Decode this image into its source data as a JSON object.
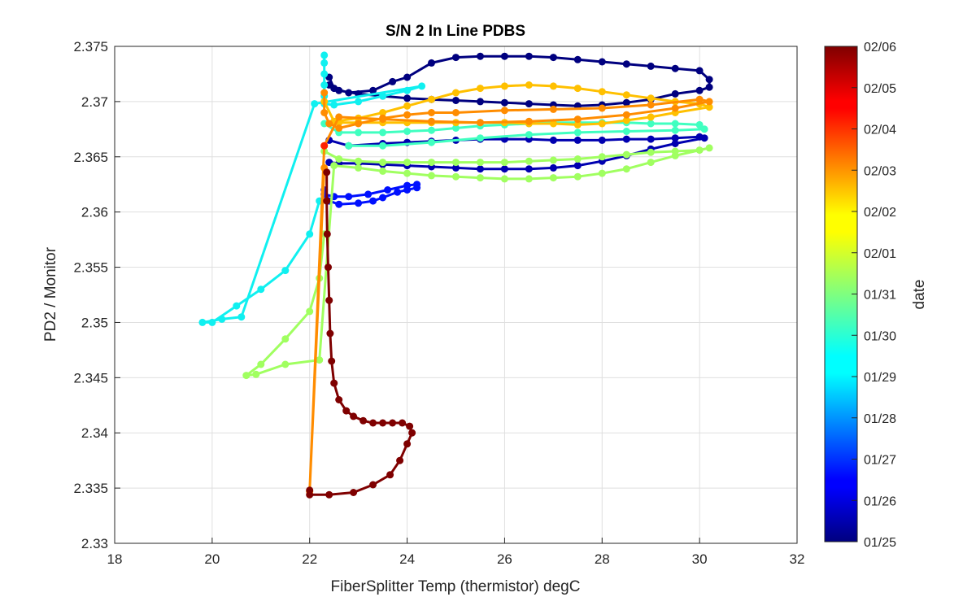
{
  "chart_data": {
    "type": "scatter",
    "title": "S/N 2 In Line PDBS",
    "xlabel": "FiberSplitter Temp (thermistor) degC",
    "ylabel": "PD2 / Monitor",
    "xlim": [
      18,
      32
    ],
    "ylim": [
      2.33,
      2.375
    ],
    "xticks": [
      "18",
      "20",
      "22",
      "24",
      "26",
      "28",
      "30",
      "32"
    ],
    "yticks": [
      "2.33",
      "2.335",
      "2.34",
      "2.345",
      "2.35",
      "2.355",
      "2.36",
      "2.365",
      "2.37",
      "2.375"
    ],
    "grid": true,
    "colorbar": {
      "label": "date",
      "colormap": "jet",
      "ticks": [
        "01/25",
        "01/26",
        "01/27",
        "01/28",
        "01/29",
        "01/30",
        "01/31",
        "02/01",
        "02/02",
        "02/03",
        "02/04",
        "02/05",
        "02/06"
      ]
    },
    "series": [
      {
        "date": "01/25",
        "color": "#00007f",
        "points": [
          [
            22.4,
            2.3722
          ],
          [
            22.5,
            2.3712
          ],
          [
            22.8,
            2.3708
          ],
          [
            23.3,
            2.371
          ],
          [
            23.7,
            2.3718
          ],
          [
            24.0,
            2.3722
          ],
          [
            24.5,
            2.3735
          ],
          [
            25.0,
            2.374
          ],
          [
            25.5,
            2.3741
          ],
          [
            26.0,
            2.3741
          ],
          [
            26.5,
            2.3741
          ],
          [
            27.0,
            2.374
          ],
          [
            27.5,
            2.3738
          ],
          [
            28.0,
            2.3736
          ],
          [
            28.5,
            2.3734
          ],
          [
            29.0,
            2.3732
          ],
          [
            29.5,
            2.373
          ],
          [
            30.0,
            2.3728
          ],
          [
            30.2,
            2.372
          ],
          [
            30.2,
            2.3713
          ],
          [
            30.0,
            2.371
          ],
          [
            29.5,
            2.3707
          ],
          [
            29.0,
            2.3702
          ],
          [
            28.5,
            2.3699
          ],
          [
            28.0,
            2.3697
          ],
          [
            27.5,
            2.3696
          ],
          [
            27.0,
            2.3697
          ],
          [
            26.5,
            2.3698
          ],
          [
            26.0,
            2.3699
          ],
          [
            25.5,
            2.37
          ],
          [
            25.0,
            2.3701
          ],
          [
            24.5,
            2.3702
          ],
          [
            24.0,
            2.3703
          ],
          [
            23.5,
            2.3705
          ],
          [
            23.0,
            2.3707
          ],
          [
            22.6,
            2.371
          ],
          [
            22.4,
            2.3715
          ]
        ]
      },
      {
        "date": "01/26",
        "color": "#0000b0",
        "points": [
          [
            22.4,
            2.3665
          ],
          [
            22.8,
            2.366
          ],
          [
            23.5,
            2.3662
          ],
          [
            24.0,
            2.3663
          ],
          [
            24.5,
            2.3664
          ],
          [
            25.0,
            2.3665
          ],
          [
            25.5,
            2.3666
          ],
          [
            26.0,
            2.3666
          ],
          [
            26.5,
            2.3666
          ],
          [
            27.0,
            2.3665
          ],
          [
            27.5,
            2.3665
          ],
          [
            28.0,
            2.3665
          ],
          [
            28.5,
            2.3666
          ],
          [
            29.0,
            2.3666
          ],
          [
            29.5,
            2.3667
          ],
          [
            30.0,
            2.3668
          ],
          [
            30.1,
            2.3667
          ],
          [
            29.5,
            2.3662
          ],
          [
            29.0,
            2.3657
          ],
          [
            28.5,
            2.3651
          ],
          [
            28.0,
            2.3646
          ],
          [
            27.5,
            2.3642
          ],
          [
            27.0,
            2.364
          ],
          [
            26.5,
            2.3639
          ],
          [
            26.0,
            2.3639
          ],
          [
            25.5,
            2.3639
          ],
          [
            25.0,
            2.364
          ],
          [
            24.5,
            2.3641
          ],
          [
            24.0,
            2.3642
          ],
          [
            23.5,
            2.3643
          ],
          [
            23.0,
            2.3644
          ],
          [
            22.6,
            2.3644
          ],
          [
            22.4,
            2.3645
          ]
        ]
      },
      {
        "date": "01/27",
        "color": "#0010ff",
        "points": [
          [
            22.3,
            2.362
          ],
          [
            22.4,
            2.361
          ],
          [
            22.6,
            2.3607
          ],
          [
            23.0,
            2.3608
          ],
          [
            23.3,
            2.361
          ],
          [
            23.5,
            2.3613
          ],
          [
            23.8,
            2.3618
          ],
          [
            24.0,
            2.362
          ],
          [
            24.2,
            2.3622
          ],
          [
            24.2,
            2.3625
          ],
          [
            24.0,
            2.3624
          ],
          [
            23.6,
            2.362
          ],
          [
            23.2,
            2.3616
          ],
          [
            22.8,
            2.3614
          ],
          [
            22.5,
            2.3614
          ],
          [
            22.3,
            2.3616
          ]
        ]
      },
      {
        "date": "01/29",
        "color": "#10f0f0",
        "points": [
          [
            22.3,
            2.3742
          ],
          [
            22.3,
            2.3735
          ],
          [
            22.3,
            2.3725
          ],
          [
            22.3,
            2.3715
          ],
          [
            22.3,
            2.3705
          ],
          [
            22.3,
            2.3698
          ],
          [
            22.5,
            2.3697
          ],
          [
            23.0,
            2.37
          ],
          [
            23.5,
            2.3705
          ],
          [
            24.0,
            2.371
          ],
          [
            24.3,
            2.3714
          ],
          [
            22.1,
            2.3698
          ],
          [
            20.6,
            2.3505
          ],
          [
            20.2,
            2.3503
          ],
          [
            19.8,
            2.35
          ],
          [
            20.0,
            2.35
          ],
          [
            20.5,
            2.3515
          ],
          [
            21.0,
            2.353
          ],
          [
            21.5,
            2.3547
          ],
          [
            22.0,
            2.358
          ],
          [
            22.2,
            2.361
          ]
        ]
      },
      {
        "date": "01/30",
        "color": "#40ffc0",
        "points": [
          [
            22.3,
            2.368
          ],
          [
            22.6,
            2.3672
          ],
          [
            23.0,
            2.3672
          ],
          [
            23.5,
            2.3672
          ],
          [
            24.0,
            2.3673
          ],
          [
            24.5,
            2.3674
          ],
          [
            25.0,
            2.3676
          ],
          [
            25.5,
            2.3678
          ],
          [
            26.0,
            2.3679
          ],
          [
            26.5,
            2.368
          ],
          [
            27.0,
            2.3681
          ],
          [
            27.5,
            2.3681
          ],
          [
            28.0,
            2.3681
          ],
          [
            28.5,
            2.3681
          ],
          [
            29.0,
            2.368
          ],
          [
            29.5,
            2.368
          ],
          [
            30.0,
            2.3679
          ],
          [
            30.1,
            2.3675
          ],
          [
            29.5,
            2.3674
          ],
          [
            28.5,
            2.3673
          ],
          [
            27.5,
            2.3672
          ],
          [
            26.5,
            2.367
          ],
          [
            25.5,
            2.3667
          ],
          [
            24.5,
            2.3663
          ],
          [
            23.5,
            2.366
          ],
          [
            22.8,
            2.366
          ]
        ]
      },
      {
        "date": "01/31",
        "color": "#a0ff60",
        "points": [
          [
            22.3,
            2.3655
          ],
          [
            22.6,
            2.3648
          ],
          [
            23.0,
            2.3646
          ],
          [
            23.5,
            2.3645
          ],
          [
            24.0,
            2.3645
          ],
          [
            24.5,
            2.3645
          ],
          [
            25.0,
            2.3645
          ],
          [
            25.5,
            2.3645
          ],
          [
            26.0,
            2.3645
          ],
          [
            26.5,
            2.3646
          ],
          [
            27.0,
            2.3647
          ],
          [
            27.5,
            2.3648
          ],
          [
            28.0,
            2.365
          ],
          [
            28.5,
            2.3652
          ],
          [
            29.0,
            2.3654
          ],
          [
            29.5,
            2.3655
          ],
          [
            30.0,
            2.3656
          ],
          [
            30.2,
            2.3658
          ],
          [
            29.5,
            2.3651
          ],
          [
            29.0,
            2.3645
          ],
          [
            28.5,
            2.3639
          ],
          [
            28.0,
            2.3635
          ],
          [
            27.5,
            2.3632
          ],
          [
            27.0,
            2.3631
          ],
          [
            26.5,
            2.363
          ],
          [
            26.0,
            2.363
          ],
          [
            25.5,
            2.3631
          ],
          [
            25.0,
            2.3632
          ],
          [
            24.5,
            2.3633
          ],
          [
            24.0,
            2.3635
          ],
          [
            23.5,
            2.3637
          ],
          [
            23.0,
            2.364
          ],
          [
            22.5,
            2.3642
          ],
          [
            22.2,
            2.3466
          ],
          [
            21.5,
            2.3462
          ],
          [
            20.9,
            2.3453
          ],
          [
            20.7,
            2.3452
          ],
          [
            21.0,
            2.3462
          ],
          [
            21.5,
            2.3485
          ],
          [
            22.0,
            2.351
          ],
          [
            22.2,
            2.354
          ],
          [
            22.3,
            2.358
          ]
        ]
      },
      {
        "date": "02/02",
        "color": "#ffc000",
        "points": [
          [
            22.3,
            2.37
          ],
          [
            22.5,
            2.3682
          ],
          [
            23.0,
            2.3685
          ],
          [
            23.5,
            2.369
          ],
          [
            24.0,
            2.3696
          ],
          [
            24.5,
            2.3702
          ],
          [
            25.0,
            2.3708
          ],
          [
            25.5,
            2.3712
          ],
          [
            26.0,
            2.3714
          ],
          [
            26.5,
            2.3715
          ],
          [
            27.0,
            2.3714
          ],
          [
            27.5,
            2.3712
          ],
          [
            28.0,
            2.3709
          ],
          [
            28.5,
            2.3706
          ],
          [
            29.0,
            2.3703
          ],
          [
            29.5,
            2.37
          ],
          [
            30.0,
            2.3698
          ],
          [
            30.2,
            2.3695
          ],
          [
            29.5,
            2.369
          ],
          [
            29.0,
            2.3686
          ],
          [
            28.5,
            2.3683
          ],
          [
            28.0,
            2.368
          ],
          [
            27.5,
            2.3679
          ],
          [
            27.0,
            2.368
          ],
          [
            26.5,
            2.368
          ],
          [
            26.0,
            2.3681
          ],
          [
            25.5,
            2.3681
          ],
          [
            25.0,
            2.3681
          ],
          [
            24.5,
            2.3681
          ],
          [
            24.0,
            2.3681
          ],
          [
            23.5,
            2.3681
          ],
          [
            23.0,
            2.3681
          ],
          [
            22.6,
            2.3681
          ]
        ]
      },
      {
        "date": "02/03",
        "color": "#ff8c00",
        "points": [
          [
            22.3,
            2.3708
          ],
          [
            22.3,
            2.369
          ],
          [
            22.4,
            2.368
          ],
          [
            22.6,
            2.3676
          ],
          [
            23.0,
            2.368
          ],
          [
            23.5,
            2.3685
          ],
          [
            24.0,
            2.3688
          ],
          [
            24.5,
            2.369
          ],
          [
            25.0,
            2.369
          ],
          [
            26.0,
            2.3692
          ],
          [
            27.0,
            2.3693
          ],
          [
            28.0,
            2.3694
          ],
          [
            29.0,
            2.3697
          ],
          [
            30.0,
            2.3702
          ],
          [
            30.2,
            2.37
          ],
          [
            29.5,
            2.3694
          ],
          [
            28.5,
            2.3688
          ],
          [
            27.5,
            2.3684
          ],
          [
            26.5,
            2.3682
          ],
          [
            25.5,
            2.3681
          ],
          [
            24.5,
            2.3682
          ],
          [
            23.5,
            2.3684
          ],
          [
            22.6,
            2.3686
          ],
          [
            22.3,
            2.366
          ],
          [
            22.0,
            2.3347
          ],
          [
            22.3,
            2.364
          ]
        ]
      },
      {
        "date": "02/04",
        "color": "#ff2000",
        "points": [
          [
            22.3,
            2.366
          ]
        ]
      },
      {
        "date": "02/06",
        "color": "#7f0000",
        "points": [
          [
            22.35,
            2.3636
          ],
          [
            22.35,
            2.361
          ],
          [
            22.36,
            2.358
          ],
          [
            22.38,
            2.355
          ],
          [
            22.4,
            2.352
          ],
          [
            22.42,
            2.349
          ],
          [
            22.45,
            2.3465
          ],
          [
            22.5,
            2.3445
          ],
          [
            22.6,
            2.343
          ],
          [
            22.75,
            2.342
          ],
          [
            22.9,
            2.3415
          ],
          [
            23.1,
            2.3411
          ],
          [
            23.3,
            2.3409
          ],
          [
            23.5,
            2.3409
          ],
          [
            23.7,
            2.3409
          ],
          [
            23.9,
            2.3409
          ],
          [
            24.05,
            2.3406
          ],
          [
            24.1,
            2.34
          ],
          [
            24.0,
            2.339
          ],
          [
            23.85,
            2.3375
          ],
          [
            23.65,
            2.3362
          ],
          [
            23.3,
            2.3353
          ],
          [
            22.9,
            2.3346
          ],
          [
            22.4,
            2.3344
          ],
          [
            22.0,
            2.3344
          ],
          [
            22.0,
            2.3348
          ]
        ]
      }
    ]
  }
}
